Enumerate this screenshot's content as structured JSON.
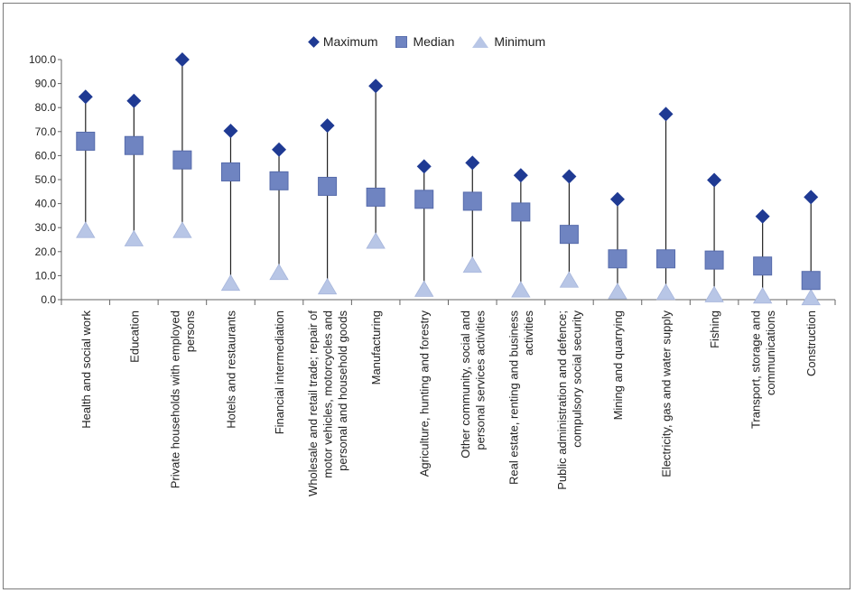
{
  "chart_data": {
    "type": "scatter",
    "categories": [
      [
        "Health and social work"
      ],
      [
        "Education"
      ],
      [
        "Private households with employed",
        "persons"
      ],
      [
        "Hotels and restaurants"
      ],
      [
        "Financial intermediation"
      ],
      [
        "Wholesale and retail trade; repair of",
        "motor vehicles, motorcycles and",
        "personal and household goods"
      ],
      [
        "Manufacturing"
      ],
      [
        "Agriculture, hunting and forestry"
      ],
      [
        "Other community, social and",
        "personal services activities"
      ],
      [
        "Real estate, renting and business",
        "activities"
      ],
      [
        "Public administration and defence;",
        "compulsory social security"
      ],
      [
        "Mining and quarrying"
      ],
      [
        "Electricity, gas and water supply"
      ],
      [
        "Fishing"
      ],
      [
        "Transport, storage and",
        "communications"
      ],
      [
        "Construction"
      ]
    ],
    "series": [
      {
        "name": "Maximum",
        "values": [
          84.5,
          82.8,
          100.0,
          70.3,
          62.5,
          72.5,
          89.0,
          55.5,
          57.0,
          51.8,
          51.3,
          41.8,
          77.3,
          49.8,
          34.7,
          42.7
        ]
      },
      {
        "name": "Median",
        "values": [
          66.0,
          64.2,
          58.2,
          53.2,
          49.5,
          47.2,
          42.7,
          41.8,
          41.0,
          36.5,
          27.2,
          17.0,
          17.0,
          16.5,
          14.0,
          8.0
        ]
      },
      {
        "name": "Minimum",
        "values": [
          28.5,
          25.0,
          28.5,
          6.5,
          11.0,
          5.0,
          24.0,
          4.0,
          14.0,
          3.7,
          7.8,
          3.0,
          2.7,
          1.7,
          1.2,
          0.5
        ]
      }
    ],
    "yticks": [
      "0.0",
      "10.0",
      "20.0",
      "30.0",
      "40.0",
      "50.0",
      "60.0",
      "70.0",
      "80.0",
      "90.0",
      "100.0"
    ],
    "ylim": [
      0,
      100
    ],
    "xlabel": "",
    "ylabel": "",
    "legend": "top-center",
    "grid": false,
    "colors": {
      "maximum": "#1f3a93",
      "median": "#6f84c1",
      "minimum": "#b8c6e6",
      "range_line": "#222222"
    }
  }
}
